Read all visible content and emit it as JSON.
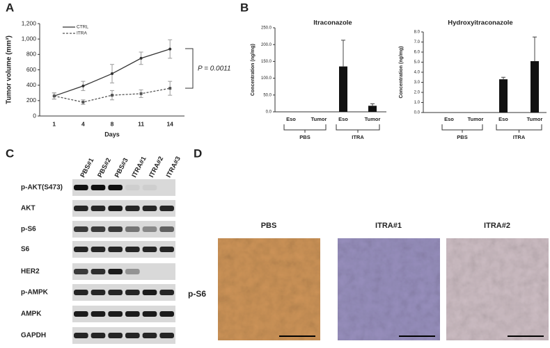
{
  "panels": [
    "A",
    "B",
    "C",
    "D"
  ],
  "chart_data": [
    {
      "type": "line",
      "ylabel": "Tumor volume (mm³)",
      "xlabel": "Days",
      "categories": [
        "1",
        "4",
        "8",
        "11",
        "14"
      ],
      "series": [
        {
          "name": "CTRL",
          "color": "#333333",
          "values": [
            260,
            390,
            550,
            750,
            870
          ],
          "errors": [
            40,
            60,
            120,
            80,
            120
          ]
        },
        {
          "name": "ITRA",
          "color": "#555555",
          "values": [
            260,
            180,
            270,
            290,
            360
          ],
          "errors": [
            40,
            30,
            60,
            50,
            90
          ]
        }
      ],
      "ylim": [
        0,
        1200
      ],
      "yticks": [
        0,
        200,
        400,
        600,
        800,
        {
          "value": 1000,
          "label": "1,000"
        },
        {
          "value": 1200,
          "label": "1,200"
        }
      ],
      "annotation": "P = 0.0011"
    },
    {
      "type": "bar",
      "title": "Itraconazole",
      "ylabel": "Concentration (ng/mg)",
      "categories": [
        "Eso",
        "Tumor",
        "Eso",
        "Tumor"
      ],
      "groups": [
        "PBS",
        "ITRA"
      ],
      "values": [
        0,
        0,
        135,
        18
      ],
      "errors": [
        null,
        null,
        78,
        6
      ],
      "color": "#111111",
      "ylim": [
        0,
        250
      ],
      "yticks": [
        {
          "value": 0,
          "label": "0.0"
        },
        {
          "value": 50,
          "label": "50.0"
        },
        {
          "value": 100,
          "label": "100.0"
        },
        {
          "value": 150,
          "label": "150.0"
        },
        {
          "value": 200,
          "label": "200.0"
        },
        {
          "value": 250,
          "label": "250.0"
        }
      ]
    },
    {
      "type": "bar",
      "title": "Hydroxyitraconazole",
      "ylabel": "Concentration (ng/mg)",
      "categories": [
        "Eso",
        "Tumor",
        "Eso",
        "Tumor"
      ],
      "groups": [
        "PBS",
        "ITRA"
      ],
      "values": [
        0,
        0,
        3.3,
        5.1
      ],
      "errors": [
        null,
        null,
        0.2,
        2.4
      ],
      "color": "#111111",
      "ylim": [
        0,
        8
      ],
      "yticks": [
        {
          "value": 0,
          "label": "0.0"
        },
        {
          "value": 1,
          "label": "1.0"
        },
        {
          "value": 2,
          "label": "2.0"
        },
        {
          "value": 3,
          "label": "3.0"
        },
        {
          "value": 4,
          "label": "4.0"
        },
        {
          "value": 5,
          "label": "5.0"
        },
        {
          "value": 6,
          "label": "6.0"
        },
        {
          "value": 7,
          "label": "7.0"
        },
        {
          "value": 8,
          "label": "8.0"
        }
      ]
    }
  ],
  "blot": {
    "lanes": [
      "PBS#1",
      "PBS#2",
      "PBS#3",
      "ITRA#1",
      "ITRA#2",
      "ITRA#3"
    ],
    "rows": [
      "p-AKT(S473)",
      "AKT",
      "p-S6",
      "S6",
      "HER2",
      "p-AMPK",
      "AMPK",
      "GAPDH"
    ]
  },
  "ihc": {
    "samples": [
      "PBS",
      "ITRA#1",
      "ITRA#2"
    ],
    "stain": "p-S6"
  }
}
